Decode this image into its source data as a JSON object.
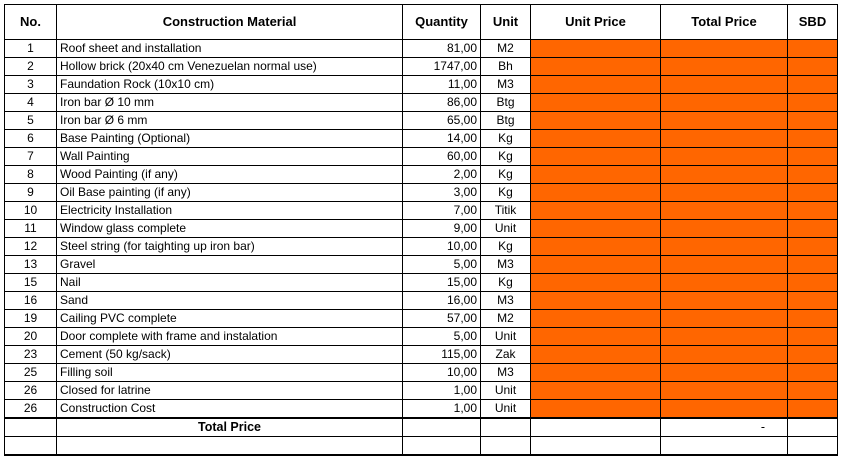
{
  "header": {
    "no": "No.",
    "material": "Construction Material",
    "quantity": "Quantity",
    "unit": "Unit",
    "unit_price": "Unit Price",
    "total_price": "Total Price",
    "sbd": "SBD"
  },
  "rows": [
    {
      "no": "1",
      "material": "Roof sheet and installation",
      "quantity": "81,00",
      "unit": "M2"
    },
    {
      "no": "2",
      "material": "Hollow brick (20x40 cm Venezuelan normal use)",
      "quantity": "1747,00",
      "unit": "Bh"
    },
    {
      "no": "3",
      "material": "Faundation Rock (10x10 cm)",
      "quantity": "11,00",
      "unit": "M3"
    },
    {
      "no": "4",
      "material": "Iron bar Ø 10 mm",
      "quantity": "86,00",
      "unit": "Btg"
    },
    {
      "no": "5",
      "material": "Iron bar Ø 6 mm",
      "quantity": "65,00",
      "unit": "Btg"
    },
    {
      "no": "6",
      "material": "Base Painting (Optional)",
      "quantity": "14,00",
      "unit": "Kg"
    },
    {
      "no": "7",
      "material": "Wall Painting",
      "quantity": "60,00",
      "unit": "Kg"
    },
    {
      "no": "8",
      "material": "Wood Painting (if any)",
      "quantity": "2,00",
      "unit": "Kg"
    },
    {
      "no": "9",
      "material": "Oil Base painting (if any)",
      "quantity": "3,00",
      "unit": "Kg"
    },
    {
      "no": "10",
      "material": "Electricity Installation",
      "quantity": "7,00",
      "unit": "Titik"
    },
    {
      "no": "11",
      "material": "Window glass complete",
      "quantity": "9,00",
      "unit": "Unit"
    },
    {
      "no": "12",
      "material": "Steel string (for taighting up iron bar)",
      "quantity": "10,00",
      "unit": "Kg"
    },
    {
      "no": "13",
      "material": "Gravel",
      "quantity": "5,00",
      "unit": "M3"
    },
    {
      "no": "15",
      "material": "Nail",
      "quantity": "15,00",
      "unit": "Kg"
    },
    {
      "no": "16",
      "material": "Sand",
      "quantity": "16,00",
      "unit": "M3"
    },
    {
      "no": "19",
      "material": "Cailing PVC complete",
      "quantity": "57,00",
      "unit": "M2"
    },
    {
      "no": "20",
      "material": "Door complete with frame and instalation",
      "quantity": "5,00",
      "unit": "Unit"
    },
    {
      "no": "23",
      "material": "Cement (50 kg/sack)",
      "quantity": "115,00",
      "unit": "Zak"
    },
    {
      "no": "25",
      "material": "Filling soil",
      "quantity": "10,00",
      "unit": "M3"
    },
    {
      "no": "26",
      "material": "Closed for latrine",
      "quantity": "1,00",
      "unit": "Unit"
    },
    {
      "no": "26",
      "material": "Construction Cost",
      "quantity": "1,00",
      "unit": "Unit"
    }
  ],
  "total_row": {
    "label": "Total Price",
    "total_value": "-"
  },
  "colors": {
    "highlight": "#ff6600"
  }
}
